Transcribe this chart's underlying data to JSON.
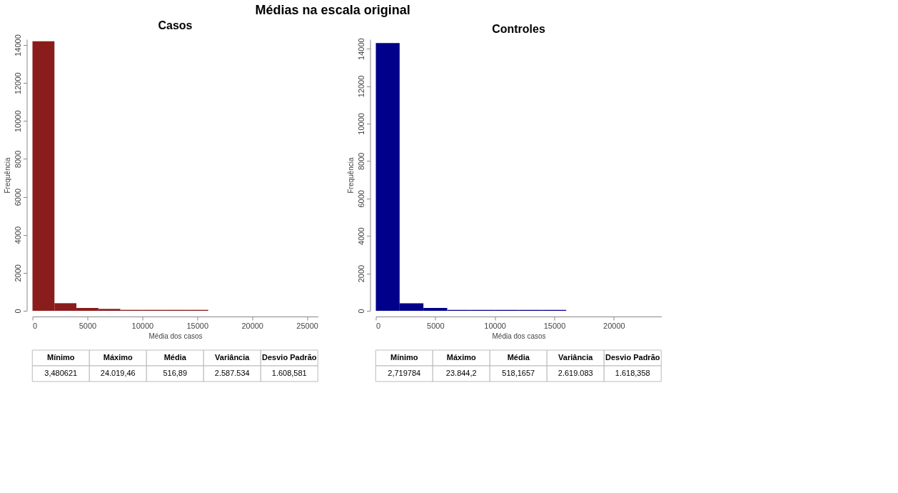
{
  "chart_data": [
    {
      "type": "histogram",
      "title": "Casos",
      "xlabel": "Média dos casos",
      "ylabel": "Frequência",
      "color": "#8b1c1c",
      "bins": [
        0,
        2000,
        4000,
        6000,
        8000,
        10000,
        12000,
        14000,
        16000,
        18000,
        20000,
        22000,
        24000,
        26000
      ],
      "values": [
        14200,
        400,
        150,
        100,
        50,
        50,
        50,
        50,
        0,
        0,
        0,
        0,
        0
      ],
      "xlim": [
        0,
        26000
      ],
      "xticks": [
        0,
        5000,
        10000,
        15000,
        20000,
        25000
      ],
      "ylim": [
        0,
        14300
      ],
      "yticks": [
        0,
        2000,
        4000,
        6000,
        8000,
        10000,
        12000,
        14000
      ],
      "grid": false,
      "annotations": [
        "Médias na escala original",
        "Mínimo",
        "Máximo",
        "Média",
        "Variância",
        "Desvio Padrão",
        "3,480621",
        "24.019,46",
        "516,89",
        "2.587.534",
        "1.608,581"
      ]
    },
    {
      "type": "histogram",
      "title": "Controles",
      "xlabel": "Média dos casos",
      "ylabel": "Frequência",
      "color": "#00008b",
      "bins": [
        0,
        2000,
        4000,
        6000,
        8000,
        10000,
        12000,
        14000,
        16000,
        18000,
        20000,
        22000,
        24000
      ],
      "values": [
        14300,
        400,
        150,
        50,
        50,
        50,
        50,
        50,
        0,
        0,
        0,
        0
      ],
      "xlim": [
        0,
        24000
      ],
      "xticks": [
        0,
        5000,
        10000,
        15000,
        20000
      ],
      "ylim": [
        0,
        14500
      ],
      "yticks": [
        0,
        2000,
        4000,
        6000,
        8000,
        10000,
        12000,
        14000
      ],
      "grid": false,
      "annotations": [
        "Mínimo",
        "Máximo",
        "Média",
        "Variância",
        "Desvio Padrão",
        "2,719784",
        "23.844,2",
        "518,1657",
        "2.619.083",
        "1.618,358"
      ]
    }
  ]
}
